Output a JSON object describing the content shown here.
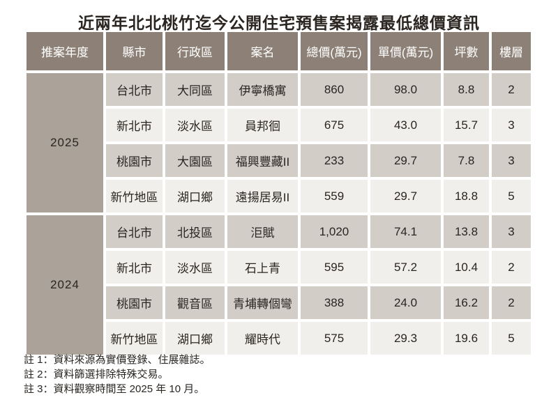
{
  "title": "近兩年北北桃竹迄今公開住宅預售案揭露最低總價資訊",
  "chart_data": {
    "type": "table",
    "title": "近兩年北北桃竹迄今公開住宅預售案揭露最低總價資訊",
    "columns": [
      "推案年度",
      "縣市",
      "行政區",
      "案名",
      "總價(萬元)",
      "單價(萬元)",
      "坪數",
      "樓層"
    ],
    "groups": [
      {
        "year": "2025",
        "rows": [
          {
            "city": "台北市",
            "district": "大同區",
            "project": "伊寧橋寓",
            "total_price": "860",
            "unit_price": "98.0",
            "area": "8.8",
            "floor": "2"
          },
          {
            "city": "新北市",
            "district": "淡水區",
            "project": "員邦徊",
            "total_price": "675",
            "unit_price": "43.0",
            "area": "15.7",
            "floor": "3"
          },
          {
            "city": "桃園市",
            "district": "大園區",
            "project": "福興豐藏II",
            "total_price": "233",
            "unit_price": "29.7",
            "area": "7.8",
            "floor": "3"
          },
          {
            "city": "新竹地區",
            "district": "湖口鄉",
            "project": "遠揚居易II",
            "total_price": "559",
            "unit_price": "29.7",
            "area": "18.8",
            "floor": "5"
          }
        ]
      },
      {
        "year": "2024",
        "rows": [
          {
            "city": "台北市",
            "district": "北投區",
            "project": "洰賦",
            "total_price": "1,020",
            "unit_price": "74.1",
            "area": "13.8",
            "floor": "3"
          },
          {
            "city": "新北市",
            "district": "淡水區",
            "project": "石上青",
            "total_price": "595",
            "unit_price": "57.2",
            "area": "10.4",
            "floor": "2"
          },
          {
            "city": "桃園市",
            "district": "觀音區",
            "project": "青埔轉個彎",
            "total_price": "388",
            "unit_price": "24.0",
            "area": "16.2",
            "floor": "2"
          },
          {
            "city": "新竹地區",
            "district": "湖口鄉",
            "project": "耀時代",
            "total_price": "575",
            "unit_price": "29.3",
            "area": "19.6",
            "floor": "5"
          }
        ]
      }
    ]
  },
  "notes": [
    "註 1：資料來源為實價登錄、住展雜誌。",
    "註 2：資料篩選排除特殊交易。",
    "註 3：資料觀察時間至 2025 年 10 月。"
  ],
  "colors": {
    "background": "#ffffff",
    "text": "#2a2521",
    "header_bg": "#8d8177",
    "header_text": "#ffffff",
    "year_bg": "#aba299",
    "row_shaded": "#d3cdc8",
    "row_light": "#f1efec"
  }
}
